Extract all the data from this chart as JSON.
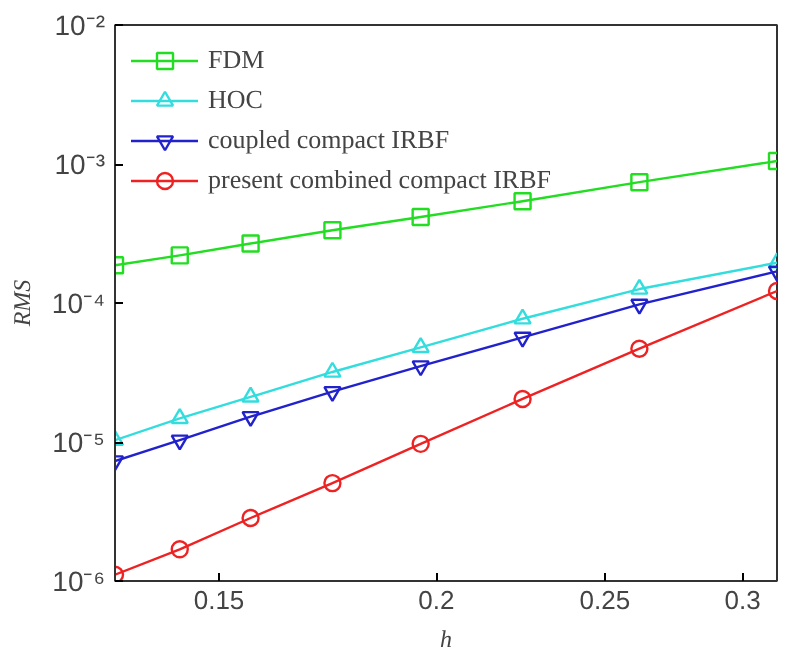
{
  "chart_data": {
    "type": "line",
    "xlabel": "h",
    "ylabel": "RMS",
    "log": "xy",
    "grid": false,
    "legend": "top left",
    "x": [
      0.1307,
      0.1424,
      0.1564,
      0.1743,
      0.1959,
      0.2242,
      0.2617,
      0.314
    ],
    "xlim": [
      0.1307,
      0.314
    ],
    "xticks": [
      0.15,
      0.2,
      0.25,
      0.3
    ],
    "ylim": [
      1e-06,
      0.01
    ],
    "yticks": [
      {
        "value": 1e-06,
        "label": "10⁻⁶"
      },
      {
        "value": 1e-05,
        "label": "10⁻⁵"
      },
      {
        "value": 0.0001,
        "label": "10⁻⁴"
      },
      {
        "value": 0.001,
        "label": "10⁻³"
      },
      {
        "value": 0.01,
        "label": "10⁻²"
      }
    ],
    "series": [
      {
        "name": "FDM",
        "color": "#22dd22",
        "marker": "square",
        "values": [
          0.000187,
          0.00022,
          0.000268,
          0.000334,
          0.000416,
          0.00054,
          0.00074,
          0.00105
        ]
      },
      {
        "name": "HOC",
        "color": "#33dddd",
        "marker": "triangle",
        "values": [
          1.03e-05,
          1.48e-05,
          2.11e-05,
          3.19e-05,
          4.8e-05,
          7.7e-05,
          0.000126,
          0.000195
        ]
      },
      {
        "name": "coupled compact IRBF",
        "color": "#2222cc",
        "marker": "triangle_down",
        "values": [
          7.3e-06,
          1.03e-05,
          1.52e-05,
          2.3e-05,
          3.52e-05,
          5.66e-05,
          9.77e-05,
          0.000169
        ]
      },
      {
        "name": "present combined compact IRBF",
        "color": "#ee2222",
        "marker": "circle",
        "values": [
          1.11e-06,
          1.69e-06,
          2.84e-06,
          5.06e-06,
          9.7e-06,
          2.04e-05,
          4.69e-05,
          0.000122
        ]
      }
    ]
  }
}
